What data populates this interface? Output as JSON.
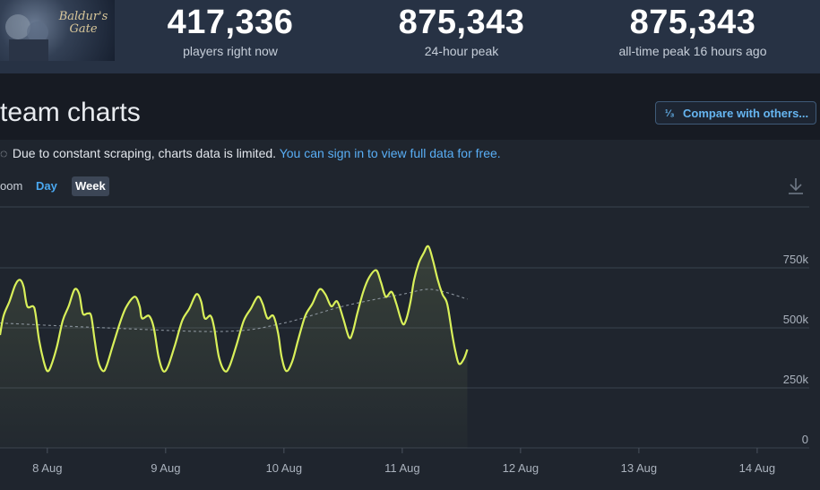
{
  "header": {
    "thumb_logo": "Baldur's Gate",
    "stats": [
      {
        "value": "417,336",
        "label": "players right now"
      },
      {
        "value": "875,343",
        "label": "24-hour peak"
      },
      {
        "value": "875,343",
        "label": "all-time peak 16 hours ago"
      }
    ]
  },
  "page_title": "team charts",
  "compare_button": {
    "icon": "1/3-fraction-icon",
    "label": "Compare with others..."
  },
  "notice": {
    "text": "Due to constant scraping, charts data is limited.",
    "link": "You can sign in to view full data for free."
  },
  "zoom": {
    "label": "oom",
    "day": "Day",
    "week": "Week",
    "selected": "Week"
  },
  "colors": {
    "line": "#d9f05a",
    "average": "#9aa3ad",
    "link": "#59aef5"
  },
  "chart_data": {
    "type": "line",
    "title": "",
    "xlabel": "",
    "ylabel": "",
    "ylim": [
      0,
      1000000
    ],
    "xlim": [
      7.6,
      14.44
    ],
    "x_ticks": [
      {
        "x": 8,
        "label": "8 Aug"
      },
      {
        "x": 9,
        "label": "9 Aug"
      },
      {
        "x": 10,
        "label": "10 Aug"
      },
      {
        "x": 11,
        "label": "11 Aug"
      },
      {
        "x": 12,
        "label": "12 Aug"
      },
      {
        "x": 13,
        "label": "13 Aug"
      },
      {
        "x": 14,
        "label": "14 Aug"
      }
    ],
    "y_ticks": [
      {
        "y": 0,
        "label": "0"
      },
      {
        "y": 250000,
        "label": "250k"
      },
      {
        "y": 500000,
        "label": "500k"
      },
      {
        "y": 750000,
        "label": "750k"
      }
    ],
    "grid": true,
    "series": [
      {
        "points": [
          [
            7.6,
            470000
          ],
          [
            7.63,
            550000
          ],
          [
            7.68,
            610000
          ],
          [
            7.73,
            680000
          ],
          [
            7.77,
            700000
          ],
          [
            7.8,
            670000
          ],
          [
            7.83,
            590000
          ],
          [
            7.88,
            590000
          ],
          [
            7.9,
            560000
          ],
          [
            7.93,
            450000
          ],
          [
            7.97,
            360000
          ],
          [
            8.0,
            320000
          ],
          [
            8.03,
            340000
          ],
          [
            8.08,
            420000
          ],
          [
            8.13,
            530000
          ],
          [
            8.18,
            590000
          ],
          [
            8.23,
            660000
          ],
          [
            8.27,
            640000
          ],
          [
            8.3,
            560000
          ],
          [
            8.34,
            560000
          ],
          [
            8.37,
            550000
          ],
          [
            8.4,
            450000
          ],
          [
            8.43,
            360000
          ],
          [
            8.47,
            320000
          ],
          [
            8.5,
            340000
          ],
          [
            8.55,
            420000
          ],
          [
            8.62,
            530000
          ],
          [
            8.67,
            590000
          ],
          [
            8.74,
            630000
          ],
          [
            8.78,
            590000
          ],
          [
            8.8,
            540000
          ],
          [
            8.86,
            550000
          ],
          [
            8.9,
            500000
          ],
          [
            8.94,
            380000
          ],
          [
            8.98,
            320000
          ],
          [
            9.02,
            340000
          ],
          [
            9.08,
            430000
          ],
          [
            9.14,
            530000
          ],
          [
            9.2,
            580000
          ],
          [
            9.26,
            640000
          ],
          [
            9.3,
            610000
          ],
          [
            9.33,
            540000
          ],
          [
            9.38,
            550000
          ],
          [
            9.41,
            500000
          ],
          [
            9.45,
            380000
          ],
          [
            9.5,
            320000
          ],
          [
            9.54,
            340000
          ],
          [
            9.6,
            430000
          ],
          [
            9.66,
            530000
          ],
          [
            9.72,
            580000
          ],
          [
            9.78,
            630000
          ],
          [
            9.82,
            600000
          ],
          [
            9.86,
            540000
          ],
          [
            9.91,
            550000
          ],
          [
            9.95,
            480000
          ],
          [
            9.98,
            380000
          ],
          [
            10.02,
            320000
          ],
          [
            10.07,
            360000
          ],
          [
            10.12,
            450000
          ],
          [
            10.18,
            550000
          ],
          [
            10.24,
            600000
          ],
          [
            10.3,
            660000
          ],
          [
            10.35,
            640000
          ],
          [
            10.4,
            590000
          ],
          [
            10.45,
            610000
          ],
          [
            10.5,
            540000
          ],
          [
            10.55,
            460000
          ],
          [
            10.58,
            480000
          ],
          [
            10.62,
            560000
          ],
          [
            10.67,
            650000
          ],
          [
            10.72,
            710000
          ],
          [
            10.78,
            740000
          ],
          [
            10.82,
            690000
          ],
          [
            10.86,
            630000
          ],
          [
            10.91,
            650000
          ],
          [
            10.95,
            600000
          ],
          [
            11.0,
            520000
          ],
          [
            11.03,
            530000
          ],
          [
            11.07,
            610000
          ],
          [
            11.1,
            700000
          ],
          [
            11.14,
            770000
          ],
          [
            11.18,
            810000
          ],
          [
            11.22,
            840000
          ],
          [
            11.26,
            780000
          ],
          [
            11.3,
            700000
          ],
          [
            11.34,
            640000
          ],
          [
            11.38,
            600000
          ],
          [
            11.42,
            480000
          ],
          [
            11.45,
            400000
          ],
          [
            11.48,
            350000
          ],
          [
            11.52,
            370000
          ],
          [
            11.55,
            410000
          ]
        ]
      },
      {
        "points": [
          [
            7.6,
            520000
          ],
          [
            8.5,
            500000
          ],
          [
            9.5,
            485000
          ],
          [
            10.0,
            520000
          ],
          [
            10.5,
            590000
          ],
          [
            11.0,
            640000
          ],
          [
            11.25,
            660000
          ],
          [
            11.55,
            620000
          ]
        ]
      }
    ]
  }
}
